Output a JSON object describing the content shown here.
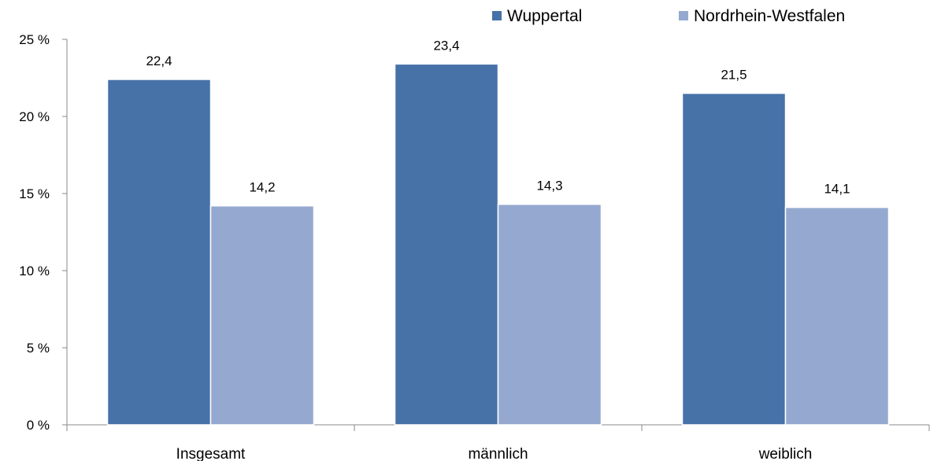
{
  "chart_data": {
    "type": "bar",
    "categories": [
      "Insgesamt",
      "männlich",
      "weiblich"
    ],
    "series": [
      {
        "name": "Wuppertal",
        "values": [
          22.4,
          23.4,
          21.5
        ],
        "labels": [
          "22,4",
          "23,4",
          "21,5"
        ],
        "color": "#4672A8"
      },
      {
        "name": "Nordrhein-Westfalen",
        "values": [
          14.2,
          14.3,
          14.1
        ],
        "labels": [
          "14,2",
          "14,3",
          "14,1"
        ],
        "color": "#95A9D0"
      }
    ],
    "ylim": [
      0,
      25
    ],
    "yticks": [
      0,
      5,
      10,
      15,
      20,
      25
    ],
    "ytick_labels": [
      "0 %",
      "5 %",
      "10 %",
      "15 %",
      "20 %",
      "25 %"
    ],
    "legend_position": "top-right",
    "grid": false
  }
}
